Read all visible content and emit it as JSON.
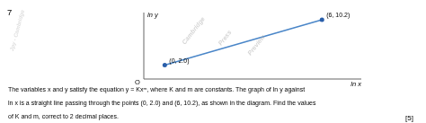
{
  "chart_data": {
    "type": "line",
    "x": [
      0,
      6
    ],
    "values": [
      2.0,
      10.2
    ],
    "value_labels": [
      "(0, 2.0)",
      "(6, 10.2)"
    ],
    "data_labels": true,
    "color": "#4a86c8",
    "colors": [
      "#2a5faa",
      "#2a5faa"
    ],
    "marker": "circle",
    "xlabel": "ln x",
    "ylabel": "ln y",
    "xlim": [
      -0.8,
      7.5
    ],
    "ylim": [
      -0.5,
      11.5
    ],
    "xticks": [],
    "yticks": [],
    "tick_labels": false,
    "grid": false,
    "annotations": [
      "O",
      "Cambridge",
      "Press",
      "Preview",
      "Jpy - Cambridge",
      "7",
      "The variables x and y satisfy the equation  y = Kxᵐ, where K and m are constants. The graph of  ln y  against",
      "ln x is a straight line passing through the points (0, 2.0)  and (6, 10.2), as shown in the diagram. Find the values",
      "of K and m, correct to 2 decimal places.",
      "[5]"
    ]
  }
}
